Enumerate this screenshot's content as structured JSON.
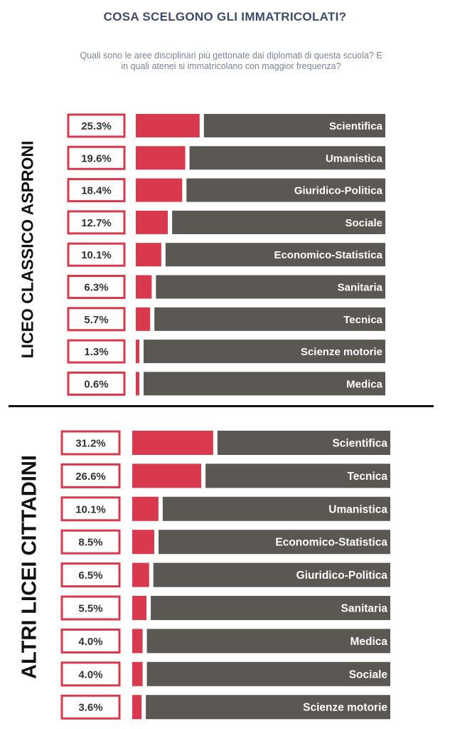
{
  "title": "COSA SCELGONO GLI IMMATRICOLATI?",
  "subtitle": "Quali sono le aree disciplinari più gettonate dai diplomati di questa scuola? E in quali atenei si immatricolano con maggior frequenza?",
  "colors": {
    "accent": "#d8394c",
    "bar_bg": "#5b5853",
    "label_text": "#ffffff",
    "title": "#3d4a6b"
  },
  "chart_data": [
    {
      "type": "bar",
      "group_label": "LICEO CLASSICO ASPRONI",
      "categories": [
        "Scientifica",
        "Umanistica",
        "Giuridico-Politica",
        "Sociale",
        "Economico-Statistica",
        "Sanitaria",
        "Tecnica",
        "Scienze motorie",
        "Medica"
      ],
      "values": [
        25.3,
        19.6,
        18.4,
        12.7,
        10.1,
        6.3,
        5.7,
        1.3,
        0.6
      ],
      "value_labels": [
        "25.3%",
        "19.6%",
        "18.4%",
        "12.7%",
        "10.1%",
        "6.3%",
        "5.7%",
        "1.3%",
        "0.6%"
      ],
      "unit": "%"
    },
    {
      "type": "bar",
      "group_label": "ALTRI LICEI CITTADINI",
      "categories": [
        "Scientifica",
        "Tecnica",
        "Umanistica",
        "Economico-Statistica",
        "Giuridico-Politica",
        "Sanitaria",
        "Medica",
        "Sociale",
        "Scienze motorie"
      ],
      "values": [
        31.2,
        26.6,
        10.1,
        8.5,
        6.5,
        5.5,
        4.0,
        4.0,
        3.6
      ],
      "value_labels": [
        "31.2%",
        "26.6%",
        "10.1%",
        "8.5%",
        "6.5%",
        "5.5%",
        "4.0%",
        "4.0%",
        "3.6%"
      ],
      "unit": "%"
    }
  ]
}
